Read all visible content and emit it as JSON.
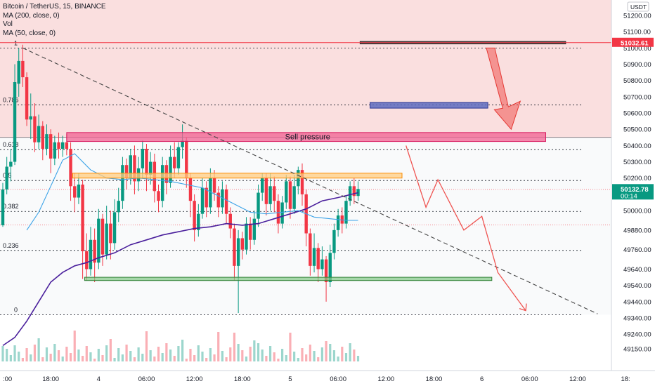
{
  "header": {
    "symbol": "Bitcoin / TetherUS, 15, BINANCE",
    "indicators": [
      "MA (200, close, 0)",
      "Vol",
      "MA (50, close, 0)"
    ]
  },
  "chart_data": {
    "type": "candlestick",
    "currency_badge": "USDT",
    "y_axis_ticks": [
      "51200.00",
      "51100.00",
      "51000.00",
      "50900.00",
      "50800.00",
      "50700.00",
      "50600.00",
      "50500.00",
      "50400.00",
      "50300.00",
      "50200.00",
      "50100.00",
      "50000.00",
      "49880.00",
      "49760.00",
      "49640.00",
      "49540.00",
      "49440.00",
      "49340.00",
      "49240.00",
      "49150.00"
    ],
    "y_axis_values": [
      51200,
      51100,
      51000,
      50900,
      50800,
      50700,
      50600,
      50500,
      50400,
      50300,
      50200,
      50100,
      50000,
      49880,
      49760,
      49640,
      49540,
      49440,
      49340,
      49240,
      49150
    ],
    "x_axis_ticks": [
      {
        "label": ":00",
        "t": 0
      },
      {
        "label": "18:00",
        "t": 24
      },
      {
        "label": "4",
        "t": 48
      },
      {
        "label": "06:00",
        "t": 72
      },
      {
        "label": "12:00",
        "t": 96
      },
      {
        "label": "18:00",
        "t": 120
      },
      {
        "label": "5",
        "t": 144
      },
      {
        "label": "06:00",
        "t": 168
      },
      {
        "label": "12:00",
        "t": 192
      },
      {
        "label": "18:00",
        "t": 216
      },
      {
        "label": "6",
        "t": 240
      },
      {
        "label": "06:00",
        "t": 264
      },
      {
        "label": "12:00",
        "t": 288
      },
      {
        "label": "18:",
        "t": 312
      }
    ],
    "price_tags": [
      {
        "label": "51032.61",
        "value": 51032.61,
        "color": "#f23645"
      },
      {
        "label": "50132.78",
        "value": 50132.78,
        "color": "#089981",
        "sub": "00:14"
      }
    ],
    "fib_levels": [
      {
        "label": "1",
        "value": 51000
      },
      {
        "label": "0.786",
        "value": 50650
      },
      {
        "label": "0.618",
        "value": 50375
      },
      {
        "label": "0.5",
        "value": 50185
      },
      {
        "label": "0.382",
        "value": 49995
      },
      {
        "label": "0.236",
        "value": 49755
      },
      {
        "label": "0",
        "value": 49360
      }
    ],
    "extra_dotted_levels": [
      50130,
      49912
    ],
    "zones": {
      "resistance_fill": {
        "top": 51260,
        "bottom": 50450
      },
      "sell_pressure": {
        "label": "Sell pressure",
        "t0": 32,
        "t1": 272,
        "top": 50480,
        "bottom": 50425
      },
      "orange_box": {
        "t0": 35,
        "t1": 200,
        "top": 50230,
        "bottom": 50200
      },
      "green_box": {
        "t0": 41,
        "t1": 245,
        "top": 49590,
        "bottom": 49570
      },
      "blue_box": {
        "t0": 184,
        "t1": 243,
        "top": 50665,
        "bottom": 50630
      },
      "dark_box": {
        "t0": 179,
        "t1": 282,
        "top": 51040,
        "bottom": 51025
      }
    },
    "trendline": {
      "t0": 10,
      "v0": 51000,
      "t1": 298,
      "v1": 49365
    },
    "projection_path": [
      [
        202,
        50400
      ],
      [
        212,
        50020
      ],
      [
        218,
        50190
      ],
      [
        231,
        49880
      ],
      [
        240,
        49965
      ],
      [
        248,
        49620
      ],
      [
        262,
        49385
      ]
    ],
    "arrow_big": [
      [
        244,
        51000
      ],
      [
        254,
        50500
      ]
    ],
    "candles": [
      [
        0,
        49910,
        50130,
        49900,
        50170,
        0,
        0
      ],
      [
        2,
        50130,
        50270,
        50100,
        50330,
        0,
        0
      ],
      [
        4,
        50270,
        50300,
        50180,
        50380,
        0,
        0
      ],
      [
        6,
        50300,
        50790,
        50280,
        50900,
        0,
        0
      ],
      [
        8,
        50780,
        50920,
        50700,
        51000,
        0,
        0
      ],
      [
        10,
        50920,
        50820,
        50760,
        51020,
        0,
        0
      ],
      [
        12,
        50820,
        50560,
        50520,
        50850,
        0,
        0
      ],
      [
        14,
        50560,
        50580,
        50440,
        50720,
        0,
        0
      ],
      [
        16,
        50580,
        50420,
        50360,
        50660,
        0,
        0
      ],
      [
        18,
        50420,
        50520,
        50380,
        50590,
        0,
        0
      ],
      [
        20,
        50520,
        50380,
        50310,
        50550,
        0,
        0
      ],
      [
        22,
        50380,
        50470,
        50340,
        50530,
        0,
        0
      ],
      [
        24,
        50470,
        50320,
        50230,
        50500,
        0,
        0
      ],
      [
        26,
        50320,
        50420,
        50280,
        50460,
        0,
        0
      ],
      [
        28,
        50420,
        50380,
        50320,
        50480,
        0,
        0
      ],
      [
        30,
        50380,
        50420,
        50330,
        50460,
        0,
        0
      ],
      [
        32,
        50420,
        50380,
        50340,
        50470,
        0,
        0
      ],
      [
        34,
        50380,
        50150,
        50060,
        50420,
        0,
        0
      ],
      [
        36,
        50150,
        50080,
        49990,
        50230,
        0,
        0
      ],
      [
        38,
        50080,
        50160,
        50040,
        50230,
        0,
        0
      ],
      [
        40,
        50160,
        49750,
        49580,
        50190,
        0,
        0
      ],
      [
        42,
        49750,
        49640,
        49570,
        49860,
        0,
        0
      ],
      [
        44,
        49640,
        49820,
        49600,
        49900,
        0,
        0
      ],
      [
        46,
        49820,
        49680,
        49560,
        49890,
        0,
        0
      ],
      [
        48,
        49680,
        49950,
        49640,
        50010,
        0,
        0
      ],
      [
        50,
        49950,
        49730,
        49660,
        49980,
        0,
        0
      ],
      [
        52,
        49730,
        49920,
        49700,
        50030,
        0,
        0
      ],
      [
        54,
        49920,
        49800,
        49700,
        50000,
        0,
        0
      ],
      [
        56,
        49800,
        49990,
        49760,
        50070,
        0,
        0
      ],
      [
        58,
        49990,
        50060,
        49930,
        50140,
        0,
        0
      ],
      [
        60,
        50060,
        50280,
        50010,
        50330,
        0,
        0
      ],
      [
        62,
        50280,
        50200,
        50130,
        50320,
        0,
        0
      ],
      [
        64,
        50200,
        50340,
        50160,
        50380,
        0,
        0
      ],
      [
        66,
        50340,
        50180,
        50100,
        50400,
        0,
        0
      ],
      [
        68,
        50180,
        50260,
        50120,
        50330,
        0,
        0
      ],
      [
        70,
        50260,
        50380,
        50200,
        50430,
        0,
        0
      ],
      [
        72,
        50380,
        50220,
        50120,
        50410,
        0,
        0
      ],
      [
        74,
        50220,
        50300,
        50160,
        50360,
        0,
        0
      ],
      [
        76,
        50300,
        50120,
        50050,
        50350,
        0,
        0
      ],
      [
        78,
        50120,
        50060,
        49990,
        50160,
        0,
        0
      ],
      [
        80,
        50060,
        50280,
        50020,
        50330,
        0,
        0
      ],
      [
        82,
        50280,
        50170,
        50100,
        50310,
        0,
        0
      ],
      [
        84,
        50170,
        50330,
        50140,
        50400,
        0,
        0
      ],
      [
        86,
        50330,
        50260,
        50200,
        50420,
        0,
        0
      ],
      [
        88,
        50260,
        50390,
        50220,
        50420,
        0,
        0
      ],
      [
        90,
        50390,
        50430,
        50320,
        50530,
        0,
        0
      ],
      [
        92,
        50430,
        50200,
        50140,
        50450,
        0,
        0
      ],
      [
        94,
        50200,
        50060,
        49960,
        50230,
        0,
        0
      ],
      [
        96,
        50060,
        49880,
        49810,
        50100,
        0,
        0
      ],
      [
        98,
        49880,
        49980,
        49840,
        50040,
        0,
        0
      ],
      [
        100,
        49980,
        50140,
        49950,
        50200,
        0,
        0
      ],
      [
        102,
        50140,
        50020,
        49960,
        50180,
        0,
        0
      ],
      [
        104,
        50020,
        50200,
        49980,
        50260,
        0,
        0
      ],
      [
        106,
        50200,
        50110,
        50060,
        50250,
        0,
        0
      ],
      [
        108,
        50110,
        50020,
        49960,
        50150,
        0,
        0
      ],
      [
        110,
        50020,
        50130,
        49980,
        50180,
        0,
        0
      ],
      [
        112,
        50130,
        49980,
        49920,
        50160,
        0,
        0
      ],
      [
        114,
        49980,
        49890,
        49830,
        50020,
        0,
        0
      ],
      [
        116,
        49890,
        49660,
        49570,
        49920,
        0,
        0
      ],
      [
        118,
        49660,
        49830,
        49370,
        49880,
        0,
        0
      ],
      [
        120,
        49830,
        49760,
        49700,
        49870,
        0,
        0
      ],
      [
        122,
        49760,
        49920,
        49730,
        49960,
        0,
        0
      ],
      [
        124,
        49920,
        49820,
        49760,
        49960,
        0,
        0
      ],
      [
        126,
        49820,
        49950,
        49790,
        50000,
        0,
        0
      ],
      [
        128,
        49950,
        50110,
        49900,
        50160,
        0,
        0
      ],
      [
        130,
        50110,
        50200,
        50060,
        50230,
        0,
        0
      ],
      [
        132,
        50200,
        50040,
        49970,
        50230,
        0,
        0
      ],
      [
        134,
        50040,
        50150,
        50000,
        50230,
        0,
        0
      ],
      [
        136,
        50150,
        50060,
        49990,
        50210,
        0,
        0
      ],
      [
        138,
        50060,
        49920,
        49860,
        50100,
        0,
        0
      ],
      [
        140,
        49920,
        50050,
        49890,
        50090,
        0,
        0
      ],
      [
        142,
        50050,
        50180,
        50010,
        50220,
        0,
        0
      ],
      [
        144,
        50180,
        50010,
        49950,
        50210,
        0,
        0
      ],
      [
        146,
        50010,
        50150,
        49980,
        50220,
        0,
        0
      ],
      [
        148,
        50150,
        50250,
        50100,
        50270,
        0,
        0
      ],
      [
        150,
        50250,
        50100,
        50030,
        50290,
        0,
        0
      ],
      [
        152,
        50100,
        49860,
        49780,
        50130,
        0,
        0
      ],
      [
        154,
        49860,
        49660,
        49600,
        49890,
        0,
        0
      ],
      [
        156,
        49660,
        49770,
        49620,
        49860,
        0,
        0
      ],
      [
        158,
        49770,
        49640,
        49560,
        49800,
        0,
        0
      ],
      [
        160,
        49640,
        49700,
        49600,
        49780,
        0,
        0
      ],
      [
        162,
        49700,
        49560,
        49440,
        49720,
        0,
        0
      ],
      [
        164,
        49560,
        49740,
        49530,
        49790,
        0,
        0
      ],
      [
        166,
        49740,
        49880,
        49700,
        49920,
        0,
        0
      ],
      [
        168,
        49880,
        49970,
        49840,
        50010,
        0,
        0
      ],
      [
        170,
        49970,
        49920,
        49860,
        50020,
        0,
        0
      ],
      [
        172,
        49920,
        50060,
        49890,
        50090,
        0,
        0
      ],
      [
        174,
        50060,
        50150,
        50030,
        50180,
        0,
        0
      ],
      [
        176,
        50150,
        50090,
        50040,
        50200,
        0,
        0
      ],
      [
        178,
        50090,
        50133,
        50060,
        50180,
        0,
        0
      ]
    ],
    "ma200": [
      [
        0,
        49170
      ],
      [
        6,
        49220
      ],
      [
        12,
        49320
      ],
      [
        18,
        49440
      ],
      [
        24,
        49560
      ],
      [
        30,
        49620
      ],
      [
        36,
        49660
      ],
      [
        42,
        49680
      ],
      [
        48,
        49710
      ],
      [
        56,
        49740
      ],
      [
        64,
        49790
      ],
      [
        72,
        49820
      ],
      [
        80,
        49850
      ],
      [
        88,
        49870
      ],
      [
        96,
        49890
      ],
      [
        104,
        49900
      ],
      [
        112,
        49920
      ],
      [
        120,
        49910
      ],
      [
        128,
        49920
      ],
      [
        136,
        49950
      ],
      [
        144,
        49980
      ],
      [
        152,
        50010
      ],
      [
        160,
        50060
      ],
      [
        168,
        50080
      ],
      [
        178,
        50110
      ]
    ],
    "ma50": [
      [
        12,
        49880
      ],
      [
        18,
        49990
      ],
      [
        24,
        50150
      ],
      [
        30,
        50310
      ],
      [
        36,
        50350
      ],
      [
        44,
        50250
      ],
      [
        52,
        50200
      ],
      [
        60,
        50190
      ],
      [
        68,
        50200
      ],
      [
        76,
        50190
      ],
      [
        84,
        50180
      ],
      [
        92,
        50160
      ],
      [
        100,
        50140
      ],
      [
        108,
        50090
      ],
      [
        116,
        50040
      ],
      [
        124,
        49990
      ],
      [
        132,
        49980
      ],
      [
        140,
        49990
      ],
      [
        148,
        50000
      ],
      [
        156,
        49960
      ],
      [
        164,
        49950
      ],
      [
        172,
        49940
      ],
      [
        178,
        49940
      ]
    ],
    "colors": {
      "up": "#089981",
      "down": "#f23645",
      "ma200": "#4a1f9c",
      "ma50": "#3ba3e8"
    }
  }
}
